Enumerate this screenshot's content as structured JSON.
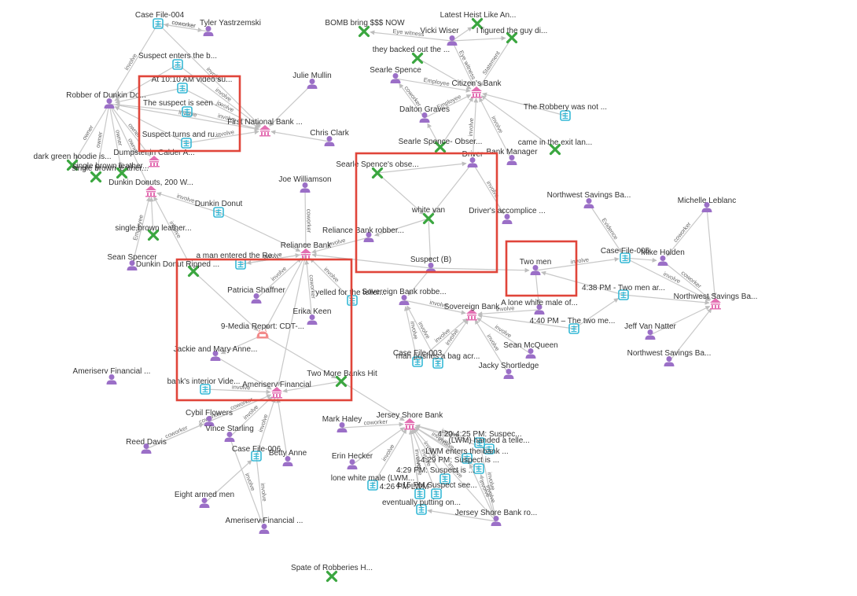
{
  "nodes": [
    {
      "id": "cf004",
      "type": "case",
      "label": "Case File-004"
    },
    {
      "id": "tyler",
      "type": "person",
      "label": "Tyler Yastrzemski"
    },
    {
      "id": "robber_dd",
      "type": "person",
      "label": "Robber of Dunkin Do..."
    },
    {
      "id": "susp_enters",
      "type": "doc",
      "label": "Suspect enters the b..."
    },
    {
      "id": "at1010",
      "type": "doc",
      "label": "At 10:10 AM video su..."
    },
    {
      "id": "susp_seen",
      "type": "doc",
      "label": "The suspect is seen ..."
    },
    {
      "id": "susp_turns",
      "type": "doc",
      "label": "Suspect turns and ru..."
    },
    {
      "id": "julie",
      "type": "person",
      "label": "Julie Mullin"
    },
    {
      "id": "fnb",
      "type": "bank",
      "label": "First National Bank ..."
    },
    {
      "id": "chris",
      "type": "person",
      "label": "Chris Clark"
    },
    {
      "id": "dumpster",
      "type": "bank",
      "label": "Dumpster in Calder A..."
    },
    {
      "id": "hoodie",
      "type": "evidence",
      "label": "dark green hoodie is..."
    },
    {
      "id": "leather1",
      "type": "evidence",
      "label": "single brown leather..."
    },
    {
      "id": "leather2",
      "type": "evidence",
      "label": "single brown leather..."
    },
    {
      "id": "dd200",
      "type": "bank",
      "label": "Dunkin Donuts, 200 W..."
    },
    {
      "id": "dd_doc",
      "type": "doc",
      "label": "Dunkin Donut"
    },
    {
      "id": "leather3",
      "type": "evidence",
      "label": "single brown leather..."
    },
    {
      "id": "sean_sp",
      "type": "person",
      "label": "Sean Spencer"
    },
    {
      "id": "dd_ripped",
      "type": "evidence",
      "label": "Dunkin Donut Ripped ..."
    },
    {
      "id": "bomb",
      "type": "evidence",
      "label": "BOMB bring $$$ NOW"
    },
    {
      "id": "latest",
      "type": "evidence",
      "label": "Latest Heist Like An..."
    },
    {
      "id": "vicki",
      "type": "person",
      "label": "Vicki Wiser"
    },
    {
      "id": "figured",
      "type": "evidence",
      "label": "I figured the guy di..."
    },
    {
      "id": "backed",
      "type": "evidence",
      "label": "they backed out the ..."
    },
    {
      "id": "searle",
      "type": "person",
      "label": "Searle Spence"
    },
    {
      "id": "citizens",
      "type": "bank",
      "label": "Citizen's Bank"
    },
    {
      "id": "dalton",
      "type": "person",
      "label": "Dalton Graves"
    },
    {
      "id": "robbery_not",
      "type": "doc",
      "label": "The Robbery was not ..."
    },
    {
      "id": "searle_obs1",
      "type": "evidence",
      "label": "Searle Spence- Obser..."
    },
    {
      "id": "came_exit",
      "type": "evidence",
      "label": "came in the exit lan..."
    },
    {
      "id": "bank_mgr",
      "type": "person",
      "label": "Bank Manager"
    },
    {
      "id": "driver",
      "type": "person",
      "label": "Driver"
    },
    {
      "id": "searle_obs2",
      "type": "evidence",
      "label": "Searle Spence's obse..."
    },
    {
      "id": "white_van",
      "type": "evidence",
      "label": "white van"
    },
    {
      "id": "driver_acc",
      "type": "person",
      "label": "Driver's accomplice ..."
    },
    {
      "id": "joe",
      "type": "person",
      "label": "Joe Williamson"
    },
    {
      "id": "reliance",
      "type": "bank",
      "label": "Reliance Bank"
    },
    {
      "id": "rel_robber",
      "type": "person",
      "label": "Reliance Bank robber..."
    },
    {
      "id": "suspect_b",
      "type": "person",
      "label": "Suspect (B)"
    },
    {
      "id": "man_entered",
      "type": "doc",
      "label": "a man entered the Re..."
    },
    {
      "id": "patricia",
      "type": "person",
      "label": "Patricia Shaffner"
    },
    {
      "id": "yelled",
      "type": "doc",
      "label": "yelled for the teller..."
    },
    {
      "id": "erika",
      "type": "person",
      "label": "Erika Keen"
    },
    {
      "id": "media",
      "type": "media",
      "label": "9-Media Report: CDT-..."
    },
    {
      "id": "jackie",
      "type": "person",
      "label": "Jackie and Mary Anne..."
    },
    {
      "id": "two_banks",
      "type": "evidence",
      "label": "Two More Banks Hit"
    },
    {
      "id": "interior",
      "type": "doc",
      "label": "bank's interior Vide..."
    },
    {
      "id": "ameriserv",
      "type": "bank",
      "label": "Ameriserv Financial"
    },
    {
      "id": "ameri_fin1",
      "type": "person",
      "label": "Ameriserv Financial ..."
    },
    {
      "id": "sov_robber",
      "type": "person",
      "label": "Sovereign Bank robbe..."
    },
    {
      "id": "sovereign",
      "type": "bank",
      "label": "Sovereign Bank"
    },
    {
      "id": "lone_white",
      "type": "person",
      "label": "A lone white male of..."
    },
    {
      "id": "t440",
      "type": "doc",
      "label": "4:40 PM – The two me..."
    },
    {
      "id": "cf003",
      "type": "case",
      "label": "Case File-003"
    },
    {
      "id": "man_bag",
      "type": "doc",
      "label": "man pushes a bag acr..."
    },
    {
      "id": "sean_mc",
      "type": "person",
      "label": "Sean McQueen"
    },
    {
      "id": "jacky",
      "type": "person",
      "label": "Jacky Shortledge"
    },
    {
      "id": "two_men",
      "type": "person",
      "label": "Two men"
    },
    {
      "id": "cf005",
      "type": "case",
      "label": "Case File-005"
    },
    {
      "id": "mike",
      "type": "person",
      "label": "Mike Holden"
    },
    {
      "id": "t438",
      "type": "doc",
      "label": "4:38 PM - Two men ar..."
    },
    {
      "id": "nw_savings",
      "type": "bank",
      "label": "Northwest Savings Ba..."
    },
    {
      "id": "nw_ba1",
      "type": "person",
      "label": "Northwest Savings Ba..."
    },
    {
      "id": "michelle",
      "type": "person",
      "label": "Michelle Leblanc"
    },
    {
      "id": "jeff",
      "type": "person",
      "label": "Jeff Van Natter"
    },
    {
      "id": "nw_ba2",
      "type": "person",
      "label": "Northwest Savings Ba..."
    },
    {
      "id": "cybil",
      "type": "person",
      "label": "Cybil Flowers"
    },
    {
      "id": "reed",
      "type": "person",
      "label": "Reed Davis"
    },
    {
      "id": "vince",
      "type": "person",
      "label": "Vince Starling"
    },
    {
      "id": "cf006",
      "type": "case",
      "label": "Case File-006"
    },
    {
      "id": "betty",
      "type": "person",
      "label": "Betty Anne"
    },
    {
      "id": "eight",
      "type": "person",
      "label": "Eight armed men"
    },
    {
      "id": "ameri_fin2",
      "type": "person",
      "label": "Ameriserv Financial ..."
    },
    {
      "id": "jersey",
      "type": "bank",
      "label": "Jersey Shore Bank"
    },
    {
      "id": "mark",
      "type": "person",
      "label": "Mark Haley"
    },
    {
      "id": "erin",
      "type": "person",
      "label": "Erin Hecker"
    },
    {
      "id": "lone_lwm",
      "type": "doc",
      "label": "lone white male (LWM..."
    },
    {
      "id": "t420",
      "type": "doc",
      "label": "4:20-4:25 PM: Suspec..."
    },
    {
      "id": "lwm_handed",
      "type": "doc",
      "label": "(LWM) handed a telle..."
    },
    {
      "id": "lwm_enters",
      "type": "doc",
      "label": "LWM enters the bank ..."
    },
    {
      "id": "t429a",
      "type": "doc",
      "label": "4:29 PM: Suspect is ..."
    },
    {
      "id": "t429b",
      "type": "doc",
      "label": "4:29 PM: Suspect is ..."
    },
    {
      "id": "t426",
      "type": "doc",
      "label": "4:26 PM LWM"
    },
    {
      "id": "t415",
      "type": "doc",
      "label": "4:15 PM Suspect see..."
    },
    {
      "id": "putting",
      "type": "doc",
      "label": "eventually putting on..."
    },
    {
      "id": "jersey_ro",
      "type": "person",
      "label": "Jersey Shore Bank ro..."
    },
    {
      "id": "spate",
      "type": "evidence",
      "label": "Spate of Robberies H..."
    }
  ],
  "edge_labels": {
    "coworker": "coworker",
    "involve": "involve",
    "owner": "owner",
    "employee": "Employee",
    "eye_witness": "Eye witness",
    "evidence": "Evidence",
    "statement": "Statement"
  },
  "colors": {
    "person": "#9b6fc7",
    "bank": "#e36fb2",
    "case": "#36b9d6",
    "doc": "#36b9d6",
    "evidence": "#3aa63f",
    "media": "#f28b8b",
    "highlight": "#e0453a",
    "edge": "#c8c8c8"
  }
}
